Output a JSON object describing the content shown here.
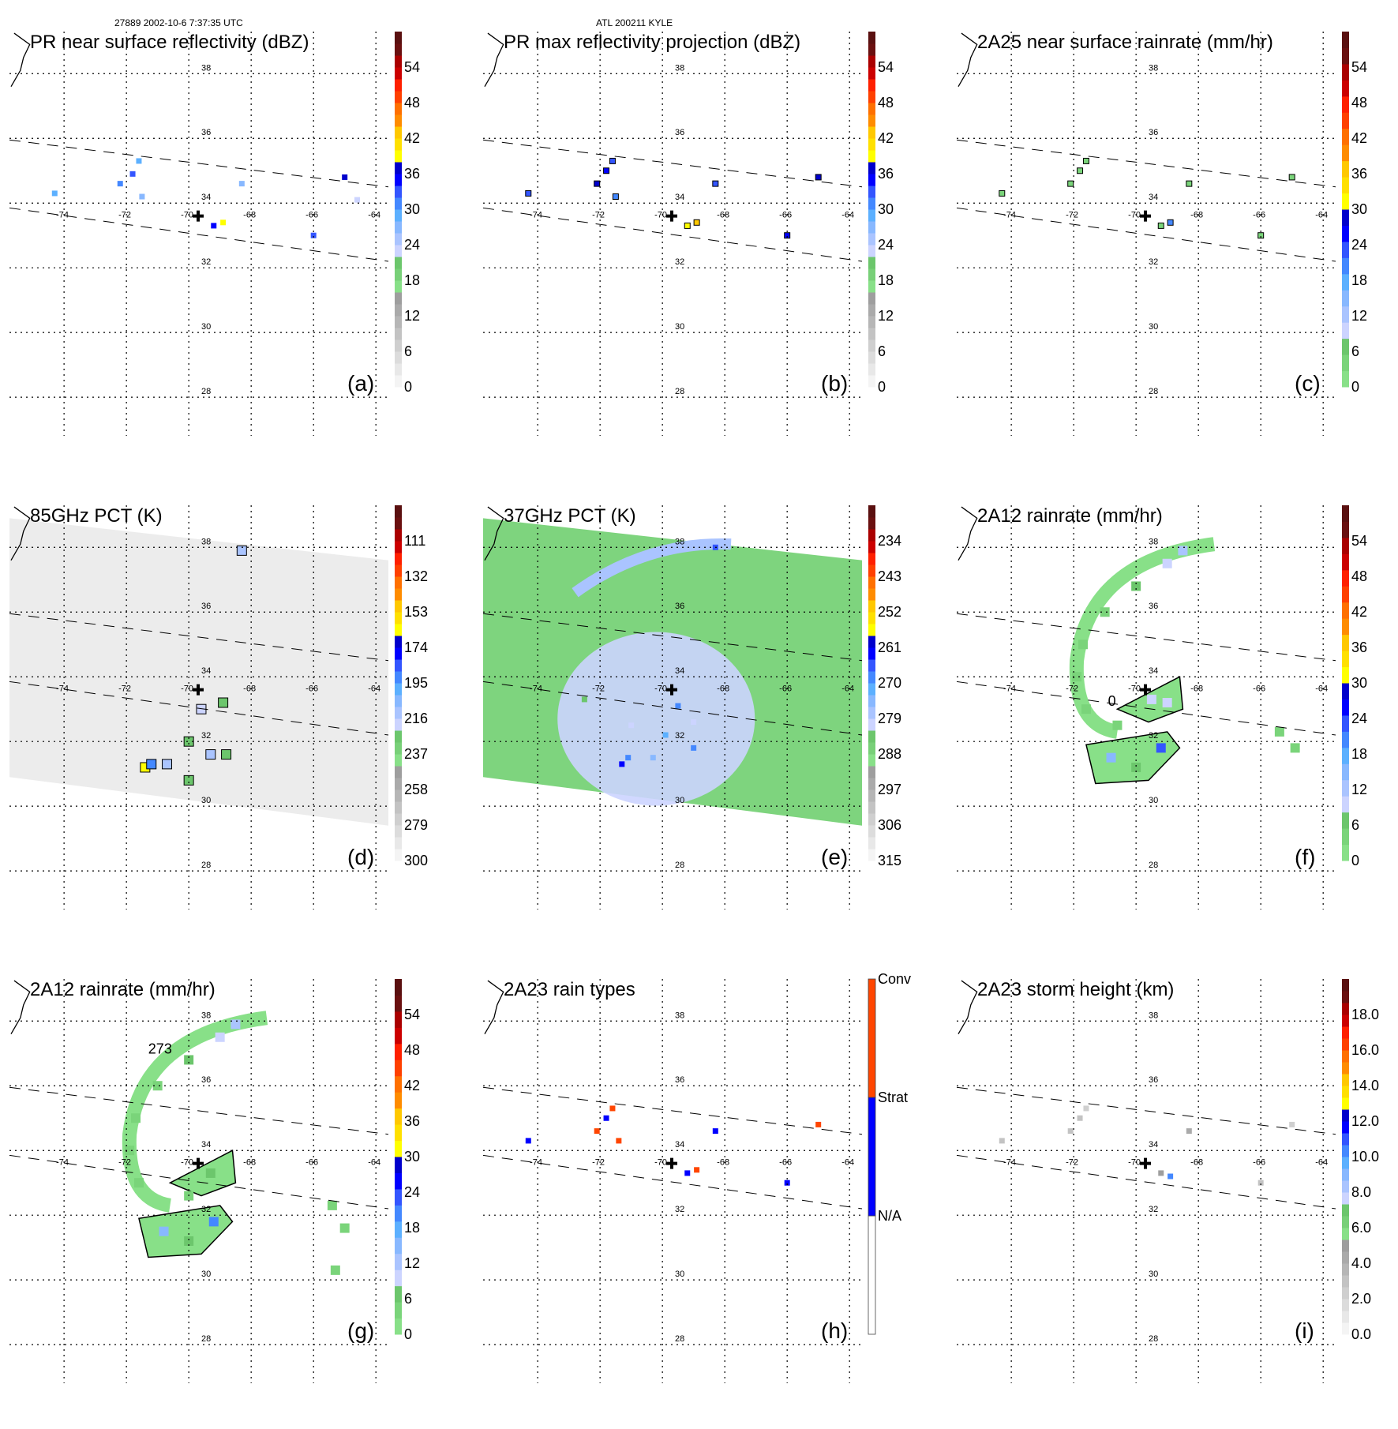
{
  "header": {
    "left": "27889 2002-10-6 7:37:35 UTC",
    "center": "ATL 200211 KYLE"
  },
  "chart_data": [
    {
      "panel": "a",
      "type": "heatmap",
      "title": "PR near surface reflectivity (dBZ)",
      "label": "(a)",
      "lon_ticks": [
        -74,
        -72,
        -70,
        -68,
        -66,
        -64
      ],
      "lat_ticks": [
        38,
        36,
        34,
        32,
        30,
        28
      ],
      "colorbar": {
        "ticks": [
          "0",
          "6",
          "12",
          "18",
          "24",
          "30",
          "36",
          "42",
          "48",
          "54"
        ],
        "range": [
          0,
          60
        ],
        "scheme": "dbz"
      },
      "swath": "pr",
      "cells": [
        [
          -74.3,
          34.3,
          28
        ],
        [
          -72.2,
          34.6,
          30
        ],
        [
          -71.8,
          34.9,
          32
        ],
        [
          -71.6,
          35.3,
          28
        ],
        [
          -71.5,
          34.2,
          26
        ],
        [
          -69.2,
          33.3,
          34
        ],
        [
          -68.9,
          33.4,
          38
        ],
        [
          -68.3,
          34.6,
          26
        ],
        [
          -66.0,
          33.0,
          32
        ],
        [
          -65.0,
          34.8,
          36
        ],
        [
          -64.6,
          34.1,
          22
        ]
      ],
      "center": {
        "lon": -69.7,
        "lat": 33.6
      }
    },
    {
      "panel": "b",
      "type": "heatmap",
      "title": "PR max reflectivity projection (dBZ)",
      "label": "(b)",
      "lon_ticks": [
        -74,
        -72,
        -70,
        -68,
        -66,
        -64
      ],
      "lat_ticks": [
        38,
        36,
        34,
        32,
        30,
        28
      ],
      "colorbar": {
        "ticks": [
          "0",
          "6",
          "12",
          "18",
          "24",
          "30",
          "36",
          "42",
          "48",
          "54"
        ],
        "range": [
          0,
          60
        ],
        "scheme": "dbz"
      },
      "swath": "pr",
      "cells": [
        [
          -74.3,
          34.3,
          32
        ],
        [
          -72.1,
          34.6,
          36
        ],
        [
          -71.8,
          35.0,
          34
        ],
        [
          -71.6,
          35.3,
          32
        ],
        [
          -71.5,
          34.2,
          30
        ],
        [
          -69.2,
          33.3,
          38
        ],
        [
          -68.9,
          33.4,
          42
        ],
        [
          -68.3,
          34.6,
          32
        ],
        [
          -66.0,
          33.0,
          34
        ],
        [
          -65.0,
          34.8,
          36
        ]
      ],
      "center": {
        "lon": -69.7,
        "lat": 33.6
      }
    },
    {
      "panel": "c",
      "type": "heatmap",
      "title": "2A25 near surface rainrate (mm/hr)",
      "label": "(c)",
      "lon_ticks": [
        -74,
        -72,
        -70,
        -68,
        -66,
        -64
      ],
      "lat_ticks": [
        38,
        36,
        34,
        32,
        30,
        28
      ],
      "colorbar": {
        "ticks": [
          "0",
          "6",
          "12",
          "18",
          "24",
          "30",
          "36",
          "42",
          "48",
          "54"
        ],
        "range": [
          0,
          60
        ],
        "scheme": "rain"
      },
      "swath": "pr",
      "cells": [
        [
          -74.3,
          34.3,
          3
        ],
        [
          -72.1,
          34.6,
          4
        ],
        [
          -71.8,
          35.0,
          4
        ],
        [
          -71.6,
          35.3,
          3
        ],
        [
          -69.2,
          33.3,
          5
        ],
        [
          -68.9,
          33.4,
          20
        ],
        [
          -68.3,
          34.6,
          4
        ],
        [
          -66.0,
          33.0,
          4
        ],
        [
          -65.0,
          34.8,
          3
        ]
      ],
      "center": {
        "lon": -69.7,
        "lat": 33.6
      }
    },
    {
      "panel": "d",
      "type": "heatmap",
      "title": "85GHz PCT (K)",
      "label": "(d)",
      "lon_ticks": [
        -74,
        -72,
        -70,
        -68,
        -66,
        -64
      ],
      "lat_ticks": [
        38,
        36,
        34,
        32,
        30,
        28
      ],
      "colorbar": {
        "ticks": [
          "300",
          "279",
          "258",
          "237",
          "216",
          "195",
          "174",
          "153",
          "132",
          "111"
        ],
        "range": [
          300,
          90
        ],
        "scheme": "pct85"
      },
      "swath": "tmi",
      "cells": [
        [
          -68.3,
          37.9,
          210
        ],
        [
          -69.6,
          33.0,
          220
        ],
        [
          -68.9,
          33.2,
          230
        ],
        [
          -70.0,
          32.0,
          225
        ],
        [
          -69.3,
          31.6,
          215
        ],
        [
          -70.7,
          31.3,
          215
        ],
        [
          -71.4,
          31.2,
          165
        ],
        [
          -71.2,
          31.3,
          190
        ],
        [
          -68.8,
          31.6,
          230
        ],
        [
          -70.0,
          30.8,
          230
        ]
      ],
      "center": {
        "lon": -69.7,
        "lat": 33.6
      }
    },
    {
      "panel": "e",
      "type": "heatmap",
      "title": "37GHz PCT (K)",
      "label": "(e)",
      "lon_ticks": [
        -74,
        -72,
        -70,
        -68,
        -66,
        -64
      ],
      "lat_ticks": [
        38,
        36,
        34,
        32,
        30,
        28
      ],
      "colorbar": {
        "ticks": [
          "315",
          "306",
          "297",
          "288",
          "279",
          "270",
          "261",
          "252",
          "243",
          "234"
        ],
        "range": [
          315,
          225
        ],
        "scheme": "pct37"
      },
      "swath": "tmi",
      "cells": [
        [
          -68.3,
          38.0,
          266
        ],
        [
          -69.5,
          33.1,
          270
        ],
        [
          -69.9,
          32.2,
          272
        ],
        [
          -69.0,
          31.8,
          270
        ],
        [
          -71.3,
          31.3,
          262
        ],
        [
          -71.1,
          31.5,
          268
        ],
        [
          -70.3,
          31.5,
          274
        ],
        [
          -72.5,
          33.3,
          283
        ],
        [
          -71.0,
          32.5,
          281
        ],
        [
          -69.0,
          32.6,
          282
        ]
      ],
      "center": {
        "lon": -69.7,
        "lat": 33.6
      }
    },
    {
      "panel": "f",
      "type": "heatmap",
      "title": "2A12 rainrate (mm/hr)",
      "label": "(f)",
      "lon_ticks": [
        -74,
        -72,
        -70,
        -68,
        -66,
        -64
      ],
      "lat_ticks": [
        38,
        36,
        34,
        32,
        30,
        28
      ],
      "colorbar": {
        "ticks": [
          "0",
          "6",
          "12",
          "18",
          "24",
          "30",
          "36",
          "42",
          "48",
          "54"
        ],
        "range": [
          0,
          60
        ],
        "scheme": "rain"
      },
      "swath": "none",
      "contour_label": "0",
      "cells": [
        [
          -68.5,
          37.9,
          12
        ],
        [
          -69.0,
          37.5,
          10
        ],
        [
          -70.0,
          36.8,
          8
        ],
        [
          -71.0,
          36.0,
          4
        ],
        [
          -71.7,
          35.0,
          3
        ],
        [
          -71.9,
          34.0,
          3
        ],
        [
          -71.6,
          33.0,
          3
        ],
        [
          -70.6,
          32.5,
          3
        ],
        [
          -69.5,
          33.3,
          10
        ],
        [
          -69.0,
          33.2,
          10
        ],
        [
          -70.8,
          31.5,
          14
        ],
        [
          -69.2,
          31.8,
          22
        ],
        [
          -70.0,
          31.2,
          6
        ],
        [
          -65.4,
          32.3,
          3
        ],
        [
          -64.9,
          31.8,
          3
        ]
      ],
      "center": {
        "lon": -69.7,
        "lat": 33.6
      }
    },
    {
      "panel": "g",
      "type": "heatmap",
      "title": "2A12 rainrate (mm/hr)",
      "label": "(g)",
      "lon_ticks": [
        -74,
        -72,
        -70,
        -68,
        -66,
        -64
      ],
      "lat_ticks": [
        38,
        36,
        34,
        32,
        30,
        28
      ],
      "colorbar": {
        "ticks": [
          "0",
          "6",
          "12",
          "18",
          "24",
          "30",
          "36",
          "42",
          "48",
          "54"
        ],
        "range": [
          0,
          60
        ],
        "scheme": "rain"
      },
      "swath": "pr",
      "contour_label": "273",
      "cells": [
        [
          -68.5,
          37.9,
          12
        ],
        [
          -69.0,
          37.5,
          10
        ],
        [
          -70.0,
          36.8,
          6
        ],
        [
          -71.0,
          36.0,
          3
        ],
        [
          -71.7,
          35.0,
          3
        ],
        [
          -71.9,
          34.0,
          3
        ],
        [
          -71.6,
          33.0,
          3
        ],
        [
          -69.3,
          33.3,
          8
        ],
        [
          -70.0,
          32.6,
          4
        ],
        [
          -70.8,
          31.5,
          14
        ],
        [
          -69.2,
          31.8,
          20
        ],
        [
          -70.0,
          31.2,
          6
        ],
        [
          -65.4,
          32.3,
          3
        ],
        [
          -65.0,
          31.6,
          3
        ],
        [
          -65.3,
          30.3,
          3
        ]
      ],
      "center": {
        "lon": -69.7,
        "lat": 33.6
      }
    },
    {
      "panel": "h",
      "type": "heatmap",
      "title": "2A23 rain types",
      "label": "(h)",
      "lon_ticks": [
        -74,
        -72,
        -70,
        -68,
        -66,
        -64
      ],
      "lat_ticks": [
        38,
        36,
        34,
        32,
        30,
        28
      ],
      "colorbar": {
        "ticks": [
          "N/A",
          "Strat",
          "Conv"
        ],
        "scheme": "raintype",
        "classes": [
          {
            "name": "N/A",
            "color": "#ffffff"
          },
          {
            "name": "Strat",
            "color": "#0000ff"
          },
          {
            "name": "Conv",
            "color": "#ff4500"
          }
        ]
      },
      "swath": "pr",
      "cells": [
        [
          -74.3,
          34.3,
          "Strat"
        ],
        [
          -72.1,
          34.6,
          "Conv"
        ],
        [
          -71.8,
          35.0,
          "Strat"
        ],
        [
          -71.6,
          35.3,
          "Conv"
        ],
        [
          -71.4,
          34.3,
          "Conv"
        ],
        [
          -69.2,
          33.3,
          "Strat"
        ],
        [
          -68.9,
          33.4,
          "Conv"
        ],
        [
          -68.3,
          34.6,
          "Strat"
        ],
        [
          -66.0,
          33.0,
          "Strat"
        ],
        [
          -65.0,
          34.8,
          "Conv"
        ]
      ],
      "center": {
        "lon": -69.7,
        "lat": 33.6
      }
    },
    {
      "panel": "i",
      "type": "heatmap",
      "title": "2A23 storm height (km)",
      "label": "(i)",
      "lon_ticks": [
        -74,
        -72,
        -70,
        -68,
        -66,
        -64
      ],
      "lat_ticks": [
        38,
        36,
        34,
        32,
        30,
        28
      ],
      "colorbar": {
        "ticks": [
          "0.0",
          "2.0",
          "4.0",
          "6.0",
          "8.0",
          "10.0",
          "12.0",
          "14.0",
          "16.0",
          "18.0"
        ],
        "range": [
          0,
          20
        ],
        "scheme": "height"
      },
      "swath": "pr",
      "cells": [
        [
          -74.3,
          34.3,
          3
        ],
        [
          -72.1,
          34.6,
          3
        ],
        [
          -71.8,
          35.0,
          3
        ],
        [
          -71.6,
          35.3,
          2
        ],
        [
          -69.2,
          33.3,
          5
        ],
        [
          -68.9,
          33.2,
          10
        ],
        [
          -68.3,
          34.6,
          4
        ],
        [
          -66.0,
          33.0,
          3
        ],
        [
          -65.0,
          34.8,
          2
        ]
      ],
      "center": {
        "lon": -69.7,
        "lat": 33.6
      }
    }
  ]
}
